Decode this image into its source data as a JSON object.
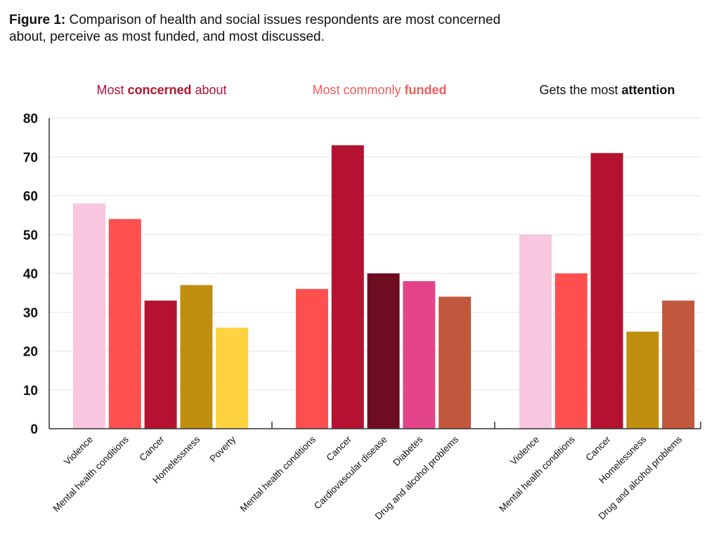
{
  "figure": {
    "label": "Figure 1:",
    "caption": "Comparison of health and social issues respondents are most concerned about, perceive as most funded, and most discussed."
  },
  "chart_data": {
    "type": "bar",
    "title": "Figure 1: Comparison of health and social issues respondents are most concerned about, perceive as most funded, and most discussed.",
    "xlabel": "",
    "ylabel": "",
    "ylim": [
      0,
      80
    ],
    "yticks": [
      0,
      10,
      20,
      30,
      40,
      50,
      60,
      70,
      80
    ],
    "grid": true,
    "legend": "none",
    "groups": [
      {
        "title_parts": [
          {
            "text": "Most ",
            "bold": false
          },
          {
            "text": "concerned",
            "bold": true
          },
          {
            "text": " about",
            "bold": false
          }
        ],
        "title_color": "#B51232",
        "categories": [
          "Violence",
          "Mental health conditions",
          "Cancer",
          "Homelessness",
          "Poverty"
        ],
        "values": [
          58,
          54,
          33,
          37,
          26
        ],
        "colors": [
          "#F9C6DF",
          "#FF5050",
          "#B51232",
          "#C18F0F",
          "#FFD23F"
        ]
      },
      {
        "title_parts": [
          {
            "text": "Most commonly ",
            "bold": false
          },
          {
            "text": "funded",
            "bold": true
          }
        ],
        "title_color": "#F25C5C",
        "categories": [
          "Mental health conditions",
          "Cancer",
          "Cardiovascular disease",
          "Diabetes",
          "Drug and alcohol problems"
        ],
        "values": [
          36,
          73,
          40,
          38,
          34
        ],
        "colors": [
          "#FF5050",
          "#B51232",
          "#6E0D22",
          "#E3448A",
          "#C1583D"
        ]
      },
      {
        "title_parts": [
          {
            "text": "Gets the most ",
            "bold": false
          },
          {
            "text": "attention",
            "bold": true
          }
        ],
        "title_color": "#111111",
        "categories": [
          "Violence",
          "Mental health conditions",
          "Cancer",
          "Homelessness",
          "Drug and alcohol problems"
        ],
        "values": [
          50,
          40,
          71,
          25,
          33
        ],
        "colors": [
          "#F9C6DF",
          "#FF5050",
          "#B51232",
          "#C18F0F",
          "#C1583D"
        ]
      }
    ]
  }
}
